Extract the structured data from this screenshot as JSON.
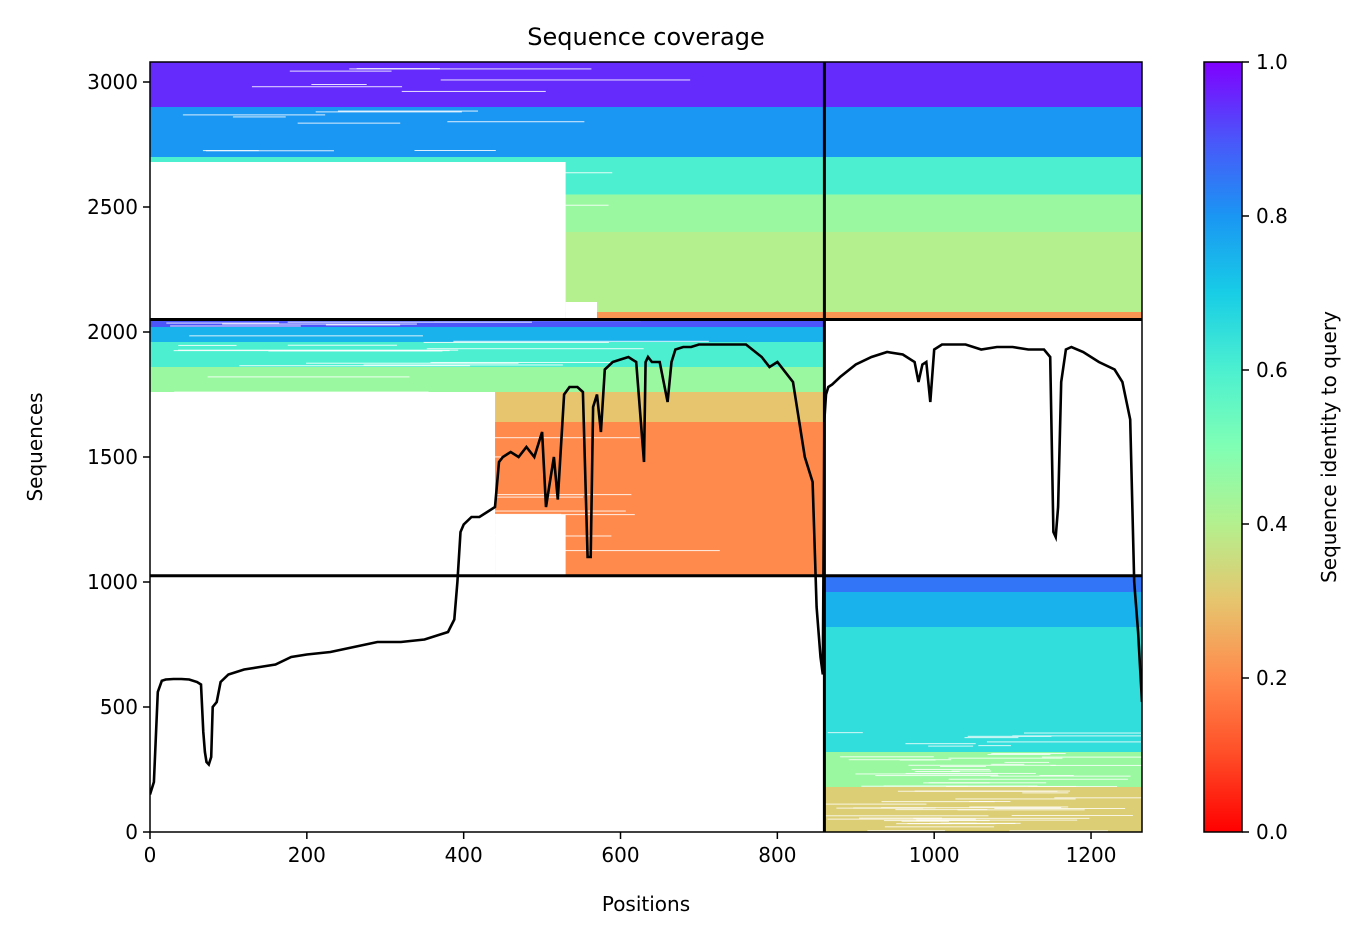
{
  "chart_data": {
    "type": "heatmap",
    "title": "Sequence coverage",
    "xlabel": "Positions",
    "ylabel": "Sequences",
    "xlim": [
      0,
      1265
    ],
    "ylim": [
      0,
      3080
    ],
    "xticks": [
      0,
      200,
      400,
      600,
      800,
      1000,
      1200
    ],
    "yticks": [
      0,
      500,
      1000,
      1500,
      2000,
      2500,
      3000
    ],
    "colorbar": {
      "label": "Sequence identity to query",
      "ticks": [
        0.0,
        0.2,
        0.4,
        0.6,
        0.8,
        1.0
      ],
      "tick_labels": [
        "0.0",
        "0.2",
        "0.4",
        "0.6",
        "0.8",
        "1.0"
      ],
      "colormap": "rainbow_r"
    },
    "chain_boundaries": {
      "x": [
        860
      ],
      "y": [
        1025,
        2050
      ]
    },
    "blocks": [
      {
        "chain": "rows 1025-2050",
        "x_range": [
          0,
          860
        ],
        "y_range": [
          1025,
          2050
        ],
        "identity_bands": [
          [
            1025,
            1640,
            0.2
          ],
          [
            1640,
            1760,
            0.3
          ],
          [
            1760,
            1860,
            0.45
          ],
          [
            1860,
            1960,
            0.6
          ],
          [
            1960,
            2020,
            0.75
          ],
          [
            2020,
            2050,
            0.9
          ]
        ]
      },
      {
        "chain": "rows 2050-3080 left",
        "x_range": [
          0,
          860
        ],
        "y_range": [
          2050,
          3080
        ],
        "identity_bands": [
          [
            2050,
            2080,
            0.22
          ],
          [
            2080,
            2400,
            0.4
          ],
          [
            2400,
            2550,
            0.45
          ],
          [
            2550,
            2700,
            0.6
          ],
          [
            2700,
            2900,
            0.8
          ],
          [
            2900,
            3080,
            0.95
          ]
        ]
      },
      {
        "chain": "rows 2050-3080 right",
        "x_range": [
          860,
          1265
        ],
        "y_range": [
          2050,
          3080
        ],
        "identity_bands": [
          [
            2050,
            2080,
            0.22
          ],
          [
            2080,
            2400,
            0.4
          ],
          [
            2400,
            2550,
            0.45
          ],
          [
            2550,
            2700,
            0.6
          ],
          [
            2700,
            2900,
            0.8
          ],
          [
            2900,
            3080,
            0.95
          ]
        ]
      },
      {
        "chain": "rows 0-1025 right",
        "x_range": [
          860,
          1265
        ],
        "y_range": [
          0,
          1025
        ],
        "identity_bands": [
          [
            0,
            180,
            0.32
          ],
          [
            180,
            320,
            0.45
          ],
          [
            320,
            820,
            0.65
          ],
          [
            820,
            960,
            0.75
          ],
          [
            960,
            1025,
            0.85
          ]
        ]
      }
    ],
    "series": [
      {
        "x": [
          0,
          5,
          10,
          15,
          20,
          30,
          40,
          50,
          60,
          65,
          68,
          70,
          72,
          75,
          78,
          80,
          85,
          90,
          100,
          120,
          140,
          160,
          180,
          200,
          230,
          260,
          290,
          320,
          350,
          380,
          388,
          392,
          396,
          400,
          410,
          420,
          430,
          440,
          445,
          450,
          460,
          470,
          480,
          490,
          500,
          505,
          510,
          515,
          520,
          528,
          535,
          545,
          552,
          558,
          562,
          565,
          570,
          575,
          580,
          590,
          600,
          610,
          620,
          630,
          632,
          635,
          640,
          650,
          660,
          665,
          670,
          680,
          690,
          700,
          720,
          740,
          760,
          780,
          790,
          800,
          820,
          835,
          845,
          850,
          855,
          858,
          860,
          862,
          865,
          870,
          880,
          900,
          920,
          940,
          960,
          975,
          980,
          985,
          990,
          995,
          1000,
          1010,
          1020,
          1040,
          1060,
          1080,
          1100,
          1120,
          1140,
          1148,
          1152,
          1155,
          1158,
          1162,
          1168,
          1175,
          1190,
          1210,
          1230,
          1240,
          1250,
          1255,
          1260,
          1265
        ],
        "values": [
          150,
          200,
          560,
          605,
          610,
          612,
          612,
          610,
          600,
          590,
          400,
          320,
          280,
          270,
          300,
          500,
          520,
          600,
          630,
          650,
          660,
          670,
          700,
          710,
          720,
          740,
          760,
          760,
          770,
          800,
          850,
          1000,
          1200,
          1230,
          1260,
          1260,
          1280,
          1300,
          1480,
          1500,
          1520,
          1500,
          1540,
          1500,
          1600,
          1300,
          1400,
          1500,
          1330,
          1750,
          1780,
          1780,
          1760,
          1100,
          1100,
          1700,
          1750,
          1600,
          1850,
          1880,
          1890,
          1900,
          1880,
          1480,
          1880,
          1900,
          1880,
          1880,
          1720,
          1880,
          1930,
          1940,
          1940,
          1950,
          1950,
          1950,
          1950,
          1900,
          1860,
          1880,
          1800,
          1500,
          1400,
          900,
          700,
          630,
          1650,
          1750,
          1780,
          1790,
          1820,
          1870,
          1900,
          1920,
          1910,
          1880,
          1800,
          1870,
          1880,
          1720,
          1930,
          1950,
          1950,
          1950,
          1930,
          1940,
          1940,
          1930,
          1930,
          1900,
          1200,
          1180,
          1300,
          1800,
          1930,
          1940,
          1920,
          1880,
          1850,
          1800,
          1650,
          1000,
          800,
          520
        ]
      }
    ]
  }
}
